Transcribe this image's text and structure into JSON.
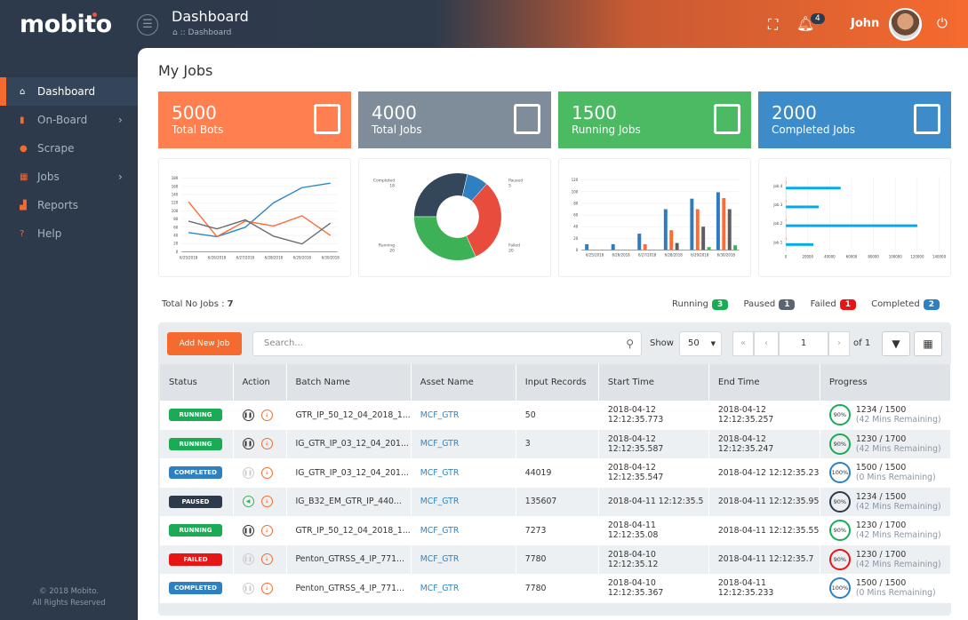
{
  "app": {
    "logo": "mobito",
    "title": "Dashboard",
    "breadcrumb": "Dashboard",
    "notifications": "4",
    "user": "John"
  },
  "sidebar": {
    "items": [
      {
        "label": "Dashboard",
        "icon": "home-icon"
      },
      {
        "label": "On-Board",
        "icon": "document-icon"
      },
      {
        "label": "Scrape",
        "icon": "globe-icon"
      },
      {
        "label": "Jobs",
        "icon": "calendar-icon"
      },
      {
        "label": "Reports",
        "icon": "chart-icon"
      },
      {
        "label": "Help",
        "icon": "help-icon"
      }
    ],
    "footer1": "© 2018 Mobito.",
    "footer2": "All Rights Reserved"
  },
  "page": {
    "title": "My Jobs"
  },
  "cards": [
    {
      "value": "5000",
      "label": "Total Bots",
      "color": "#ff7f50"
    },
    {
      "value": "4000",
      "label": "Total Jobs",
      "color": "#7f8c9a"
    },
    {
      "value": "1500",
      "label": "Running Jobs",
      "color": "#4cb963"
    },
    {
      "value": "2000",
      "label": "Completed Jobs",
      "color": "#3d8bc8"
    }
  ],
  "chart_data": [
    {
      "type": "line",
      "x": [
        "6/25/2018",
        "6/26/2018",
        "6/27/2018",
        "6/28/2018",
        "6/29/2018",
        "6/30/2018"
      ],
      "ylim": [
        0,
        180
      ],
      "yticks": [
        0,
        20,
        40,
        60,
        80,
        100,
        120,
        140,
        160,
        180
      ],
      "series": [
        {
          "color": "#2e86c1",
          "values": [
            47,
            37,
            60,
            120,
            157,
            168
          ]
        },
        {
          "color": "#ff6a33",
          "values": [
            122,
            37,
            75,
            63,
            88,
            40
          ]
        },
        {
          "color": "#666b73",
          "values": [
            75,
            56,
            78,
            38,
            19,
            70
          ]
        }
      ]
    },
    {
      "type": "pie",
      "donut": true,
      "slices": [
        {
          "label": "Completed",
          "value": 18,
          "color": "#34465a"
        },
        {
          "label": "Paused",
          "value": 5,
          "color": "#2e80c0"
        },
        {
          "label": "Failed",
          "value": 20,
          "color": "#e74c3c"
        },
        {
          "label": "Running",
          "value": 20,
          "color": "#3db155"
        }
      ]
    },
    {
      "type": "bar",
      "categories": [
        "6/25/2018",
        "6/26/2018",
        "6/27/2018",
        "6/28/2018",
        "6/29/2018",
        "6/30/2018"
      ],
      "ylim": [
        0,
        120
      ],
      "yticks": [
        0,
        20,
        40,
        60,
        80,
        100,
        120
      ],
      "series": [
        {
          "color": "#2e7bbf",
          "values": [
            10,
            10,
            28,
            70,
            88,
            99
          ]
        },
        {
          "color": "#ff6a33",
          "values": [
            0,
            0,
            10,
            34,
            70,
            89
          ]
        },
        {
          "color": "#5d5d5d",
          "values": [
            0,
            0,
            0,
            12,
            40,
            70
          ]
        },
        {
          "color": "#3db155",
          "values": [
            0,
            0,
            0,
            0,
            5,
            8
          ]
        }
      ]
    },
    {
      "type": "bar",
      "orientation": "horizontal",
      "categories": [
        "Job 1",
        "Job 2",
        "Job 3",
        "Job 4"
      ],
      "xlim": [
        0,
        140000
      ],
      "xticks": [
        0,
        20000,
        40000,
        60000,
        80000,
        100000,
        120000,
        140000
      ],
      "series": [
        {
          "color": "#00aaee",
          "values": [
            25000,
            120000,
            30000,
            50000
          ]
        },
        {
          "color": "#ff6a33",
          "values": [
            0,
            0,
            0,
            0
          ]
        }
      ]
    }
  ],
  "summary": {
    "total_label": "Total No Jobs :",
    "total": "7",
    "running_label": "Running",
    "running": "3",
    "paused_label": "Paused",
    "paused": "1",
    "failed_label": "Failed",
    "failed": "1",
    "completed_label": "Completed",
    "completed": "2"
  },
  "toolbar": {
    "add": "Add New Job",
    "search_placeholder": "Search...",
    "show": "Show",
    "page_size": "50",
    "page": "1",
    "of": "of 1"
  },
  "table": {
    "headers": [
      "Status",
      "Action",
      "Batch Name",
      "Asset Name",
      "Input Records",
      "Start Time",
      "End Time",
      "Progress"
    ],
    "rows": [
      {
        "status": "RUNNING",
        "color": "#1aab55",
        "action": "pause",
        "batch": "GTR_IP_50_12_04_2018_1...",
        "asset": "MCF_GTR",
        "input": "50",
        "start": "2018-04-12 12:12:35.773",
        "end": "2018-04-12 12:12:35.257",
        "pct": "90%",
        "ring": "#1aab55",
        "count": "1234 / 1500",
        "remaining": "(42 Mins Remaining)"
      },
      {
        "status": "RUNNING",
        "color": "#1aab55",
        "action": "pause",
        "batch": "IG_GTR_IP_03_12_04_201...",
        "asset": "MCF_GTR",
        "input": "3",
        "start": "2018-04-12 12:12:35.587",
        "end": "2018-04-12 12:12:35.247",
        "pct": "90%",
        "ring": "#1aab55",
        "count": "1230 / 1700",
        "remaining": "(42 Mins Remaining)"
      },
      {
        "status": "COMPLETED",
        "color": "#2e80c0",
        "action": "pause-disabled",
        "batch": "IG_GTR_IP_03_12_04_201...",
        "asset": "MCF_GTR",
        "input": "44019",
        "start": "2018-04-12 12:12:35.547",
        "end": "2018-04-12 12:12:35.23",
        "pct": "100%",
        "ring": "#2e80c0",
        "count": "1500 / 1500",
        "remaining": "(0 Mins Remaining)"
      },
      {
        "status": "PAUSED",
        "color": "#2c3a4b",
        "action": "play",
        "batch": "IG_B32_EM_GTR_IP_440...",
        "asset": "MCF_GTR",
        "input": "135607",
        "start": "2018-04-11 12:12:35.5",
        "end": "2018-04-11 12:12:35.95",
        "pct": "90%",
        "ring": "#2c3a4b",
        "count": "1234 / 1500",
        "remaining": "(42 Mins Remaining)"
      },
      {
        "status": "RUNNING",
        "color": "#1aab55",
        "action": "pause",
        "batch": "GTR_IP_50_12_04_2018_1...",
        "asset": "MCF_GTR",
        "input": "7273",
        "start": "2018-04-11 12:12:35.08",
        "end": "2018-04-11 12:12:35.55",
        "pct": "90%",
        "ring": "#1aab55",
        "count": "1230 / 1700",
        "remaining": "(42 Mins Remaining)"
      },
      {
        "status": "FAILED",
        "color": "#e81515",
        "action": "pause-disabled",
        "batch": "Penton_GTRSS_4_IP_771...",
        "asset": "MCF_GTR",
        "input": "7780",
        "start": "2018-04-10 12:12:35.12",
        "end": "2018-04-11 12:12:35.7",
        "pct": "90%",
        "ring": "#e81515",
        "count": "1230 / 1700",
        "remaining": "(42 Mins Remaining)"
      },
      {
        "status": "COMPLETED",
        "color": "#2e80c0",
        "action": "pause-disabled",
        "batch": "Penton_GTRSS_4_IP_771...",
        "asset": "MCF_GTR",
        "input": "7780",
        "start": "2018-04-10 12:12:35.367",
        "end": "2018-04-11 12:12:35.233",
        "pct": "100%",
        "ring": "#2e80c0",
        "count": "1500 / 1500",
        "remaining": "(0 Mins Remaining)"
      }
    ]
  }
}
